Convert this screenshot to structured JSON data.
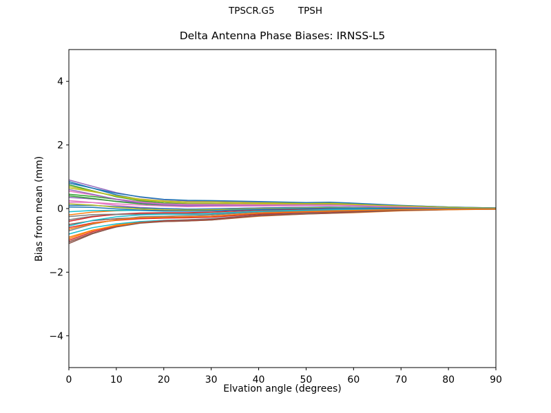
{
  "chart_data": {
    "type": "line",
    "suptitle": "TPSCR.G5        TPSH",
    "title": "Delta Antenna Phase Biases: IRNSS-L5",
    "xlabel": "Elvation angle (degrees)",
    "ylabel": "Bias from mean (mm)",
    "xlim": [
      0,
      90
    ],
    "ylim": [
      -5,
      5
    ],
    "xticks": {
      "values": [
        0,
        10,
        20,
        30,
        40,
        50,
        60,
        70,
        80,
        90
      ],
      "labels": [
        "0",
        "10",
        "20",
        "30",
        "40",
        "50",
        "60",
        "70",
        "80",
        "90"
      ]
    },
    "yticks": {
      "values": [
        -4,
        -2,
        0,
        2,
        4
      ],
      "labels": [
        "−4",
        "−2",
        "0",
        "2",
        "4"
      ]
    },
    "grid": false,
    "legend": "none",
    "background": "#ffffff",
    "axis_color": "#000000",
    "line_width": 1.5,
    "palette": [
      "#1f77b4",
      "#ff7f0e",
      "#2ca02c",
      "#d62728",
      "#9467bd",
      "#8c564b",
      "#e377c2",
      "#7f7f7f",
      "#bcbd22",
      "#17becf"
    ],
    "x": [
      0,
      5,
      10,
      15,
      20,
      25,
      30,
      40,
      50,
      55,
      60,
      70,
      80,
      90
    ],
    "series": [
      {
        "name": "s01",
        "y": [
          0.85,
          0.64,
          0.43,
          0.29,
          0.21,
          0.17,
          0.17,
          0.15,
          0.14,
          0.14,
          0.12,
          0.07,
          0.03,
          0.02
        ]
      },
      {
        "name": "s02",
        "y": [
          -0.95,
          -0.69,
          -0.52,
          -0.42,
          -0.37,
          -0.35,
          -0.33,
          -0.21,
          -0.15,
          -0.13,
          -0.1,
          -0.06,
          -0.03,
          -0.02
        ]
      },
      {
        "name": "s03",
        "y": [
          0.45,
          0.38,
          0.29,
          0.22,
          0.17,
          0.14,
          0.15,
          0.14,
          0.13,
          0.14,
          0.12,
          0.08,
          0.04,
          0.01
        ]
      },
      {
        "name": "s04",
        "y": [
          -0.6,
          -0.45,
          -0.37,
          -0.32,
          -0.3,
          -0.29,
          -0.27,
          -0.17,
          -0.12,
          -0.1,
          -0.08,
          -0.05,
          -0.02,
          -0.01
        ]
      },
      {
        "name": "s05",
        "y": [
          0.9,
          0.7,
          0.5,
          0.36,
          0.28,
          0.24,
          0.23,
          0.2,
          0.18,
          0.18,
          0.16,
          0.09,
          0.05,
          0.02
        ]
      },
      {
        "name": "s06",
        "y": [
          -1.1,
          -0.79,
          -0.57,
          -0.43,
          -0.38,
          -0.35,
          -0.32,
          -0.2,
          -0.15,
          -0.13,
          -0.09,
          -0.05,
          -0.02,
          -0.02
        ]
      },
      {
        "name": "s07",
        "y": [
          0.25,
          0.19,
          0.1,
          0.04,
          0.0,
          -0.02,
          -0.01,
          0.02,
          0.04,
          0.04,
          0.04,
          0.02,
          0.01,
          0.01
        ]
      },
      {
        "name": "s08",
        "y": [
          -0.35,
          -0.24,
          -0.19,
          -0.17,
          -0.16,
          -0.16,
          -0.15,
          -0.08,
          -0.04,
          -0.03,
          -0.02,
          -0.01,
          0.0,
          -0.01
        ]
      },
      {
        "name": "s09",
        "y": [
          0.65,
          0.53,
          0.4,
          0.3,
          0.24,
          0.21,
          0.21,
          0.18,
          0.17,
          0.17,
          0.15,
          0.09,
          0.05,
          0.01
        ]
      },
      {
        "name": "s10",
        "y": [
          -0.8,
          -0.6,
          -0.48,
          -0.41,
          -0.37,
          -0.36,
          -0.33,
          -0.22,
          -0.15,
          -0.14,
          -0.11,
          -0.06,
          -0.03,
          -0.02
        ]
      },
      {
        "name": "s11",
        "y": [
          0.1,
          0.1,
          0.06,
          0.02,
          0.0,
          -0.02,
          -0.01,
          0.02,
          0.04,
          0.05,
          0.04,
          0.03,
          0.01,
          0.0
        ]
      },
      {
        "name": "s12",
        "y": [
          -0.2,
          -0.11,
          -0.07,
          -0.05,
          -0.06,
          -0.06,
          -0.05,
          0.0,
          0.01,
          0.03,
          0.03,
          0.02,
          0.01,
          0.0
        ]
      },
      {
        "name": "s13",
        "y": [
          0.75,
          0.56,
          0.37,
          0.25,
          0.17,
          0.14,
          0.14,
          0.13,
          0.13,
          0.13,
          0.11,
          0.06,
          0.03,
          0.02
        ]
      },
      {
        "name": "s14",
        "y": [
          -1.0,
          -0.73,
          -0.55,
          -0.44,
          -0.39,
          -0.37,
          -0.34,
          -0.22,
          -0.16,
          -0.14,
          -0.11,
          -0.06,
          -0.03,
          -0.02
        ]
      },
      {
        "name": "s15",
        "y": [
          0.35,
          0.3,
          0.23,
          0.18,
          0.13,
          0.11,
          0.12,
          0.12,
          0.11,
          0.12,
          0.11,
          0.07,
          0.03,
          0.01
        ]
      },
      {
        "name": "s16",
        "y": [
          -0.5,
          -0.38,
          -0.32,
          -0.28,
          -0.27,
          -0.26,
          -0.24,
          -0.15,
          -0.1,
          -0.09,
          -0.07,
          -0.04,
          -0.02,
          -0.01
        ]
      },
      {
        "name": "s17",
        "y": [
          0.55,
          0.43,
          0.3,
          0.21,
          0.15,
          0.13,
          0.13,
          0.12,
          0.12,
          0.12,
          0.11,
          0.06,
          0.03,
          0.01
        ]
      },
      {
        "name": "s18",
        "y": [
          -0.7,
          -0.49,
          -0.35,
          -0.26,
          -0.24,
          -0.22,
          -0.2,
          -0.11,
          -0.08,
          -0.06,
          -0.04,
          -0.02,
          -0.01,
          -0.01
        ]
      },
      {
        "name": "s19",
        "y": [
          0.15,
          0.11,
          0.04,
          -0.01,
          -0.04,
          -0.05,
          -0.04,
          -0.01,
          0.02,
          0.03,
          0.02,
          0.01,
          0.01,
          0.0
        ]
      },
      {
        "name": "s20",
        "y": [
          -0.1,
          -0.06,
          -0.06,
          -0.06,
          -0.08,
          -0.08,
          -0.07,
          -0.02,
          0.0,
          0.01,
          0.02,
          0.01,
          0.01,
          0.0
        ]
      },
      {
        "name": "s21",
        "y": [
          0.8,
          0.64,
          0.48,
          0.37,
          0.29,
          0.26,
          0.25,
          0.22,
          0.19,
          0.2,
          0.17,
          0.1,
          0.05,
          0.02
        ]
      },
      {
        "name": "s22",
        "y": [
          -0.9,
          -0.68,
          -0.54,
          -0.45,
          -0.41,
          -0.39,
          -0.36,
          -0.24,
          -0.17,
          -0.15,
          -0.13,
          -0.07,
          -0.04,
          -0.02
        ]
      },
      {
        "name": "s23",
        "y": [
          0.4,
          0.32,
          0.22,
          0.15,
          0.1,
          0.08,
          0.08,
          0.09,
          0.09,
          0.1,
          0.09,
          0.05,
          0.03,
          0.01
        ]
      },
      {
        "name": "s24",
        "y": [
          -0.4,
          -0.26,
          -0.18,
          -0.14,
          -0.13,
          -0.13,
          -0.11,
          -0.05,
          -0.02,
          -0.01,
          0.0,
          0.01,
          0.0,
          -0.01
        ]
      },
      {
        "name": "s25",
        "y": [
          0.6,
          0.45,
          0.29,
          0.18,
          0.12,
          0.09,
          0.09,
          0.09,
          0.1,
          0.1,
          0.08,
          0.05,
          0.02,
          0.01
        ]
      },
      {
        "name": "s26",
        "y": [
          -1.05,
          -0.77,
          -0.58,
          -0.46,
          -0.41,
          -0.39,
          -0.36,
          -0.23,
          -0.17,
          -0.15,
          -0.12,
          -0.06,
          -0.03,
          -0.02
        ]
      },
      {
        "name": "s27",
        "y": [
          0.2,
          0.19,
          0.15,
          0.11,
          0.08,
          0.06,
          0.07,
          0.08,
          0.09,
          0.09,
          0.09,
          0.06,
          0.03,
          0.0
        ]
      },
      {
        "name": "s28",
        "y": [
          -0.25,
          -0.19,
          -0.18,
          -0.18,
          -0.18,
          -0.18,
          -0.17,
          -0.1,
          -0.06,
          -0.04,
          -0.04,
          -0.02,
          -0.01,
          -0.01
        ]
      },
      {
        "name": "s29",
        "y": [
          0.7,
          0.55,
          0.39,
          0.27,
          0.21,
          0.17,
          0.17,
          0.15,
          0.15,
          0.15,
          0.13,
          0.08,
          0.04,
          0.01
        ]
      },
      {
        "name": "s30",
        "y": [
          -0.55,
          -0.37,
          -0.26,
          -0.2,
          -0.18,
          -0.18,
          -0.16,
          -0.08,
          -0.05,
          -0.03,
          -0.02,
          0.0,
          0.0,
          -0.01
        ]
      },
      {
        "name": "s31",
        "y": [
          0.05,
          0.04,
          -0.01,
          -0.05,
          -0.07,
          -0.08,
          -0.07,
          -0.03,
          0.0,
          0.01,
          0.01,
          0.0,
          0.0,
          0.0
        ]
      },
      {
        "name": "s32",
        "y": [
          -0.65,
          -0.47,
          -0.36,
          -0.29,
          -0.27,
          -0.26,
          -0.24,
          -0.14,
          -0.1,
          -0.08,
          -0.06,
          -0.03,
          -0.02,
          -0.01
        ]
      }
    ]
  }
}
